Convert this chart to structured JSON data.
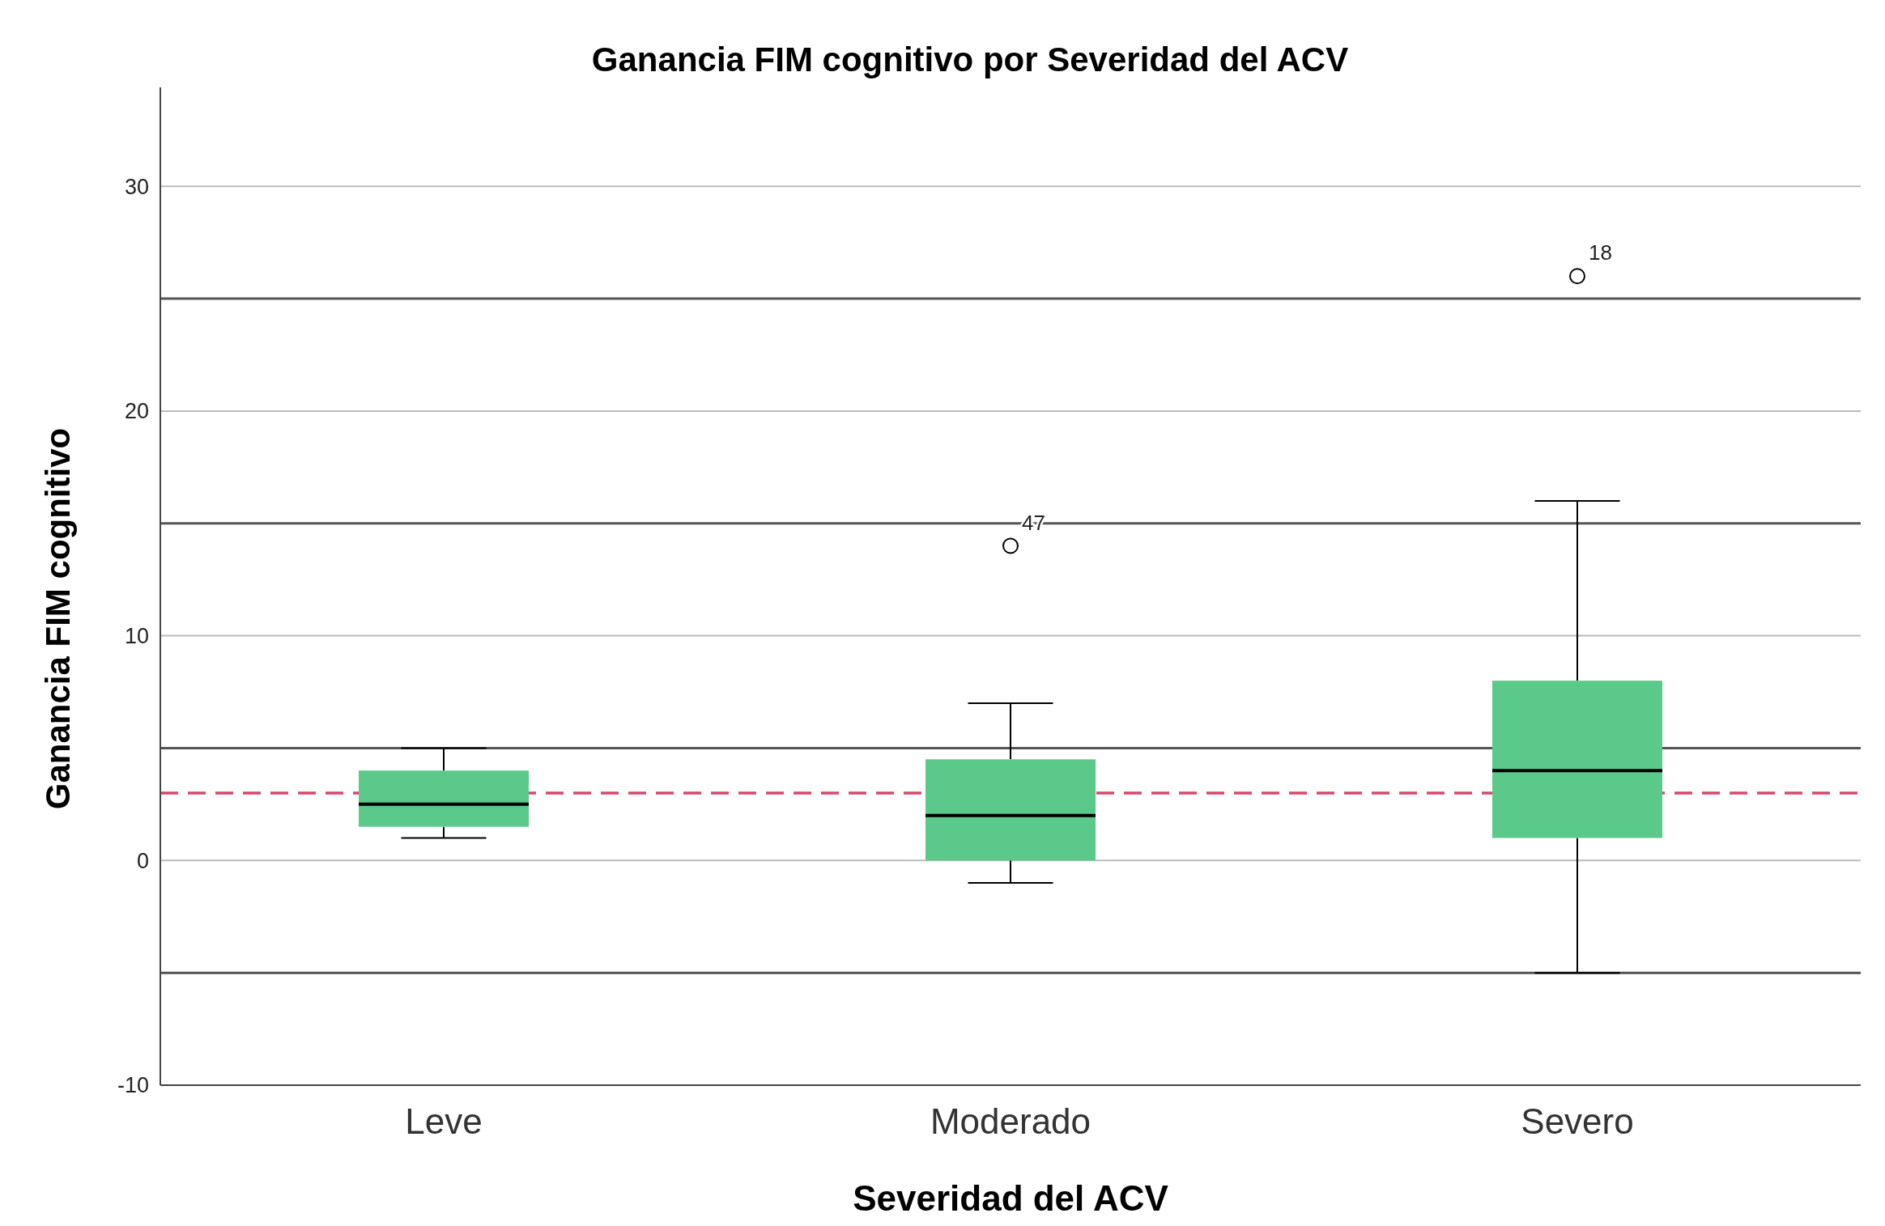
{
  "chart_data": {
    "type": "box",
    "title": "Ganancia FIM cognitivo por Severidad del ACV",
    "xlabel": "Severidad del ACV",
    "ylabel": "Ganancia FIM cognitivo",
    "categories": [
      "Leve",
      "Moderado",
      "Severo"
    ],
    "series": [
      {
        "color": "#5ac98a",
        "boxes": [
          {
            "low": 1,
            "q1": 1.5,
            "median": 2.5,
            "q3": 4,
            "high": 5
          },
          {
            "low": -1,
            "q1": 0,
            "median": 2,
            "q3": 4.5,
            "high": 7,
            "outliers": [
              14
            ]
          },
          {
            "low": -5,
            "q1": 1,
            "median": 4,
            "q3": 8,
            "high": 16,
            "outliers": [
              26
            ]
          }
        ]
      }
    ],
    "ylim": [
      -10,
      34.4
    ],
    "yticks": [
      -10,
      {
        "value": -5,
        "label": null
      },
      0,
      {
        "value": 5,
        "label": null
      },
      10,
      {
        "value": 15,
        "label": null
      },
      20,
      {
        "value": 25,
        "label": null
      },
      30
    ],
    "grid": "y",
    "ref_lines": [
      {
        "axis": "y",
        "value": 3,
        "color": "#d9476c",
        "line_style": "dashed"
      }
    ],
    "annotations": [
      "47",
      "18"
    ]
  }
}
